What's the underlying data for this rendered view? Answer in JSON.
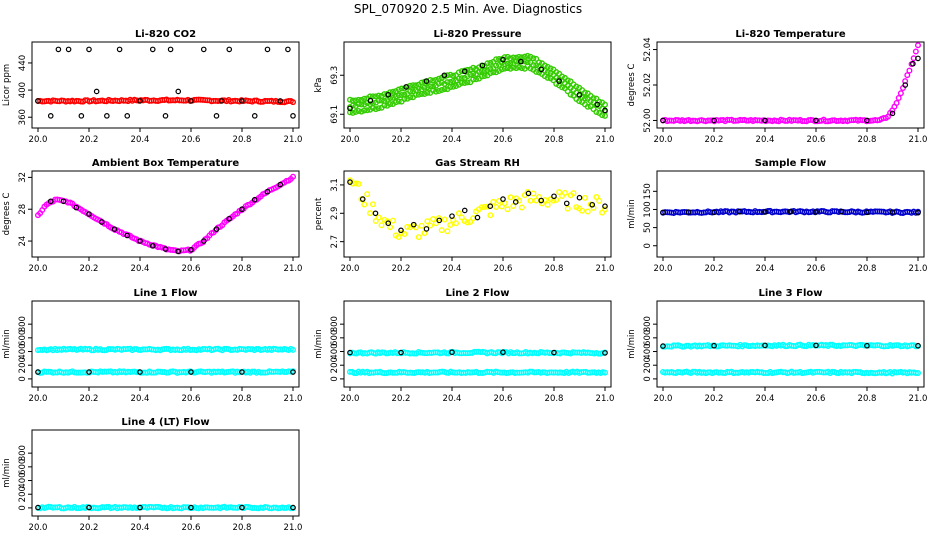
{
  "figure": {
    "title": "SPL_070920  2.5 Min. Ave. Diagnostics"
  },
  "chart_data": [
    {
      "type": "scatter",
      "title": "Li-820 CO2",
      "ylabel": "Licor ppm",
      "xlim": [
        20.0,
        21.0
      ],
      "ylim": [
        350,
        465
      ],
      "xticks": [
        "20.0",
        "20.2",
        "20.4",
        "20.6",
        "20.8",
        "21.0"
      ],
      "yticks": [
        "360",
        "400",
        "440"
      ],
      "series": [
        {
          "color": "#ff0000",
          "style": "dense",
          "x": [
            20.0,
            20.2,
            20.4,
            20.6,
            20.8,
            21.0
          ],
          "values": [
            384,
            384,
            385,
            385,
            384,
            383
          ]
        },
        {
          "color": "#000000",
          "style": "sparse",
          "x": [
            20.0,
            20.05,
            20.08,
            20.12,
            20.17,
            20.2,
            20.23,
            20.27,
            20.32,
            20.35,
            20.4,
            20.45,
            20.5,
            20.52,
            20.55,
            20.6,
            20.65,
            20.7,
            20.72,
            20.75,
            20.8,
            20.85,
            20.9,
            20.95,
            20.98,
            21.0
          ],
          "values": [
            384,
            362,
            460,
            460,
            362,
            460,
            398,
            362,
            460,
            362,
            384,
            460,
            362,
            460,
            398,
            384,
            460,
            362,
            384,
            460,
            384,
            362,
            460,
            384,
            460,
            362
          ]
        }
      ]
    },
    {
      "type": "scatter",
      "title": "Li-820 Pressure",
      "ylabel": "kPa",
      "xlim": [
        20.0,
        21.0
      ],
      "ylim": [
        69.05,
        69.45
      ],
      "xticks": [
        "20.0",
        "20.2",
        "20.4",
        "20.6",
        "20.8",
        "21.0"
      ],
      "yticks": [
        "69.1",
        "69.3"
      ],
      "series": [
        {
          "color": "#33cc00",
          "style": "band3",
          "x": [
            20.0,
            20.1,
            20.2,
            20.3,
            20.4,
            20.5,
            20.6,
            20.7,
            20.8,
            20.9,
            21.0
          ],
          "values": [
            69.14,
            69.16,
            69.2,
            69.24,
            69.27,
            69.31,
            69.36,
            69.37,
            69.3,
            69.2,
            69.12
          ]
        },
        {
          "color": "#000000",
          "style": "sparse",
          "x": [
            20.0,
            20.08,
            20.15,
            20.22,
            20.3,
            20.37,
            20.45,
            20.52,
            20.6,
            20.67,
            20.75,
            20.82,
            20.9,
            20.97,
            21.0
          ],
          "values": [
            69.13,
            69.17,
            69.2,
            69.24,
            69.27,
            69.3,
            69.32,
            69.35,
            69.38,
            69.37,
            69.33,
            69.27,
            69.2,
            69.15,
            69.12
          ]
        }
      ]
    },
    {
      "type": "scatter",
      "title": "Li-820 Temperature",
      "ylabel": "degrees C",
      "xlim": [
        20.0,
        21.0
      ],
      "ylim": [
        51.998,
        52.042
      ],
      "xticks": [
        "20.0",
        "20.2",
        "20.4",
        "20.6",
        "20.8",
        "21.0"
      ],
      "yticks": [
        "52.00",
        "52.02",
        "52.04"
      ],
      "series": [
        {
          "color": "#ff00ff",
          "style": "dense",
          "x": [
            20.0,
            20.2,
            20.4,
            20.6,
            20.8,
            20.85,
            20.88,
            20.91,
            20.94,
            20.97,
            21.0
          ],
          "values": [
            52.0,
            52.0,
            52.0,
            52.0,
            52.0,
            52.0,
            52.002,
            52.008,
            52.018,
            52.03,
            52.042
          ]
        },
        {
          "color": "#000000",
          "style": "sparse",
          "x": [
            20.0,
            20.2,
            20.4,
            20.6,
            20.8,
            20.9,
            20.95,
            20.98,
            21.0
          ],
          "values": [
            52.0,
            52.0,
            52.0,
            52.0,
            52.0,
            52.004,
            52.02,
            52.032,
            52.035
          ]
        }
      ]
    },
    {
      "type": "scatter",
      "title": "Ambient Box Temperature",
      "ylabel": "degrees C",
      "xlim": [
        20.0,
        21.0
      ],
      "ylim": [
        22.5,
        32.3
      ],
      "xticks": [
        "20.0",
        "20.2",
        "20.4",
        "20.6",
        "20.8",
        "21.0"
      ],
      "yticks": [
        "24",
        "28",
        "32"
      ],
      "series": [
        {
          "color": "#ff00ff",
          "style": "dense",
          "x": [
            20.0,
            20.03,
            20.07,
            20.12,
            20.2,
            20.3,
            20.4,
            20.5,
            20.55,
            20.6,
            20.65,
            20.7,
            20.8,
            20.9,
            21.0
          ],
          "values": [
            27.2,
            28.5,
            29.2,
            28.9,
            27.4,
            25.5,
            24.0,
            23.0,
            22.7,
            22.9,
            24.0,
            25.5,
            28.0,
            30.2,
            32.0
          ]
        },
        {
          "color": "#000000",
          "style": "sparse",
          "x": [
            20.05,
            20.1,
            20.15,
            20.2,
            20.25,
            20.3,
            20.35,
            20.4,
            20.45,
            20.5,
            20.55,
            20.6,
            20.65,
            20.7,
            20.75,
            20.8,
            20.85,
            20.9,
            20.95
          ],
          "values": [
            29.0,
            29.0,
            28.2,
            27.4,
            26.4,
            25.5,
            24.7,
            24.0,
            23.4,
            23.0,
            22.7,
            22.9,
            24.0,
            25.5,
            26.8,
            28.0,
            29.2,
            30.2,
            31.1
          ]
        }
      ]
    },
    {
      "type": "scatter",
      "title": "Gas Stream RH",
      "ylabel": "percent",
      "xlim": [
        20.0,
        21.0
      ],
      "ylim": [
        2.62,
        3.17
      ],
      "xticks": [
        "20.0",
        "20.2",
        "20.4",
        "20.6",
        "20.8",
        "21.0"
      ],
      "yticks": [
        "2.7",
        "2.9",
        "3.1"
      ],
      "series": [
        {
          "color": "#ffff00",
          "style": "noisy",
          "x": [
            20.0,
            20.05,
            20.1,
            20.15,
            20.2,
            20.3,
            20.4,
            20.5,
            20.6,
            20.7,
            20.8,
            20.9,
            21.0
          ],
          "values": [
            3.15,
            3.02,
            2.9,
            2.82,
            2.76,
            2.79,
            2.84,
            2.9,
            2.96,
            3.0,
            3.0,
            2.98,
            2.95
          ]
        },
        {
          "color": "#000000",
          "style": "sparse",
          "x": [
            20.0,
            20.05,
            20.1,
            20.15,
            20.2,
            20.25,
            20.3,
            20.35,
            20.4,
            20.45,
            20.5,
            20.55,
            20.6,
            20.65,
            20.7,
            20.75,
            20.8,
            20.85,
            20.9,
            20.95,
            21.0
          ],
          "values": [
            3.12,
            3.0,
            2.9,
            2.83,
            2.78,
            2.82,
            2.79,
            2.85,
            2.88,
            2.92,
            2.87,
            2.95,
            3.0,
            2.98,
            3.04,
            2.99,
            3.02,
            2.97,
            3.01,
            2.96,
            2.95
          ]
        }
      ]
    },
    {
      "type": "scatter",
      "title": "Sample Flow",
      "ylabel": "ml/min",
      "xlim": [
        20.0,
        21.0
      ],
      "ylim": [
        -20,
        195
      ],
      "xticks": [
        "20.0",
        "20.2",
        "20.4",
        "20.6",
        "20.8",
        "21.0"
      ],
      "yticks": [
        "0",
        "50",
        "100",
        "150"
      ],
      "series": [
        {
          "color": "#0000cc",
          "style": "dense",
          "x": [
            20.0,
            20.2,
            20.4,
            20.6,
            20.8,
            21.0
          ],
          "values": [
            92,
            93,
            94,
            94,
            93,
            92
          ]
        },
        {
          "color": "#000000",
          "style": "sparse",
          "x": [
            20.0,
            20.1,
            20.2,
            20.3,
            20.4,
            20.5,
            20.6,
            20.7,
            20.8,
            20.9,
            21.0
          ],
          "values": [
            92,
            93,
            92,
            94,
            93,
            94,
            93,
            94,
            92,
            93,
            91
          ]
        }
      ]
    },
    {
      "type": "scatter",
      "title": "Line 1 Flow",
      "ylabel": "ml/min",
      "xlim": [
        20.0,
        21.0
      ],
      "ylim": [
        -60,
        1080
      ],
      "xticks": [
        "20.0",
        "20.2",
        "20.4",
        "20.6",
        "20.8",
        "21.0"
      ],
      "yticks": [
        "0",
        "200",
        "400",
        "600",
        "800"
      ],
      "series": [
        {
          "color": "#00ffff",
          "style": "dense",
          "x": [
            20.0,
            20.5,
            21.0
          ],
          "values": [
            430,
            430,
            430
          ]
        },
        {
          "color": "#00ffff",
          "style": "dense",
          "x": [
            20.0,
            20.5,
            21.0
          ],
          "values": [
            100,
            100,
            100
          ]
        },
        {
          "color": "#000000",
          "style": "sparse",
          "x": [
            20.0,
            20.2,
            20.4,
            20.6,
            20.8,
            21.0
          ],
          "values": [
            100,
            100,
            100,
            100,
            100,
            100
          ]
        }
      ]
    },
    {
      "type": "scatter",
      "title": "Line 2 Flow",
      "ylabel": "ml/min",
      "xlim": [
        20.0,
        21.0
      ],
      "ylim": [
        -60,
        1080
      ],
      "xticks": [
        "20.0",
        "20.2",
        "20.4",
        "20.6",
        "20.8",
        "21.0"
      ],
      "yticks": [
        "0",
        "200",
        "400",
        "600",
        "800"
      ],
      "series": [
        {
          "color": "#00ffff",
          "style": "dense",
          "x": [
            20.0,
            20.5,
            21.0
          ],
          "values": [
            380,
            385,
            380
          ]
        },
        {
          "color": "#00ffff",
          "style": "dense",
          "x": [
            20.0,
            20.5,
            21.0
          ],
          "values": [
            95,
            95,
            95
          ]
        },
        {
          "color": "#000000",
          "style": "sparse",
          "x": [
            20.0,
            20.2,
            20.4,
            20.6,
            20.8,
            21.0
          ],
          "values": [
            385,
            385,
            390,
            390,
            385,
            380
          ]
        }
      ]
    },
    {
      "type": "scatter",
      "title": "Line 3 Flow",
      "ylabel": "ml/min",
      "xlim": [
        20.0,
        21.0
      ],
      "ylim": [
        -60,
        1080
      ],
      "xticks": [
        "20.0",
        "20.2",
        "20.4",
        "20.6",
        "20.8",
        "21.0"
      ],
      "yticks": [
        "0",
        "200",
        "400",
        "600",
        "800"
      ],
      "series": [
        {
          "color": "#00ffff",
          "style": "dense",
          "x": [
            20.0,
            20.5,
            21.0
          ],
          "values": [
            480,
            490,
            485
          ]
        },
        {
          "color": "#00ffff",
          "style": "dense",
          "x": [
            20.0,
            20.5,
            21.0
          ],
          "values": [
            95,
            95,
            90
          ]
        },
        {
          "color": "#000000",
          "style": "sparse",
          "x": [
            20.0,
            20.2,
            20.4,
            20.6,
            20.8,
            21.0
          ],
          "values": [
            480,
            485,
            490,
            490,
            485,
            485
          ]
        }
      ]
    },
    {
      "type": "scatter",
      "title": "Line 4 (LT) Flow",
      "ylabel": "ml/min",
      "xlim": [
        20.0,
        21.0
      ],
      "ylim": [
        -60,
        1080
      ],
      "xticks": [
        "20.0",
        "20.2",
        "20.4",
        "20.6",
        "20.8",
        "21.0"
      ],
      "yticks": [
        "0",
        "200",
        "400",
        "600",
        "800"
      ],
      "series": [
        {
          "color": "#00ffff",
          "style": "dense",
          "x": [
            20.0,
            20.5,
            21.0
          ],
          "values": [
            5,
            5,
            5
          ]
        },
        {
          "color": "#000000",
          "style": "sparse",
          "x": [
            20.0,
            20.2,
            20.4,
            20.6,
            20.8,
            21.0
          ],
          "values": [
            5,
            5,
            5,
            5,
            5,
            5
          ]
        }
      ]
    }
  ]
}
